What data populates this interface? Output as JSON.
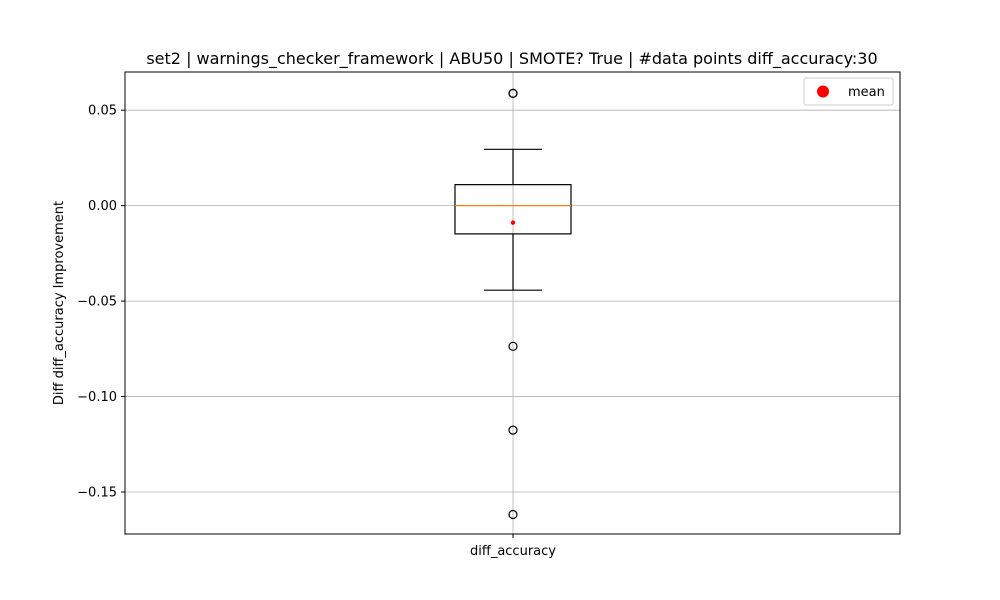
{
  "chart_data": {
    "type": "box",
    "title": "set2 | warnings_checker_framework | ABU50 | SMOTE? True | #data points diff_accuracy:30",
    "xlabel": "",
    "ylabel": "Diff diff_accuracy Improvement",
    "categories": [
      "diff_accuracy"
    ],
    "ylim": [
      -0.172,
      0.07
    ],
    "yticks": [
      0.05,
      0.0,
      -0.05,
      -0.1,
      -0.15
    ],
    "ytick_labels": [
      "0.05",
      "0.00",
      "−0.05",
      "−0.10",
      "−0.15"
    ],
    "grid": true,
    "legend": {
      "position": "top-right",
      "entries": [
        {
          "label": "mean",
          "color": "#ff0000",
          "marker": "circle"
        }
      ]
    },
    "box": {
      "whisker_low": -0.0443,
      "q1": -0.0148,
      "median": 0.0,
      "q3": 0.011,
      "whisker_high": 0.0295,
      "mean": -0.0089,
      "outliers": [
        0.0588,
        0.0588,
        -0.0737,
        -0.1176,
        -0.1618
      ]
    },
    "colors": {
      "median": "#ff7f0e",
      "mean": "#ff0000",
      "box": "#000000",
      "grid": "#b0b0b0"
    }
  }
}
